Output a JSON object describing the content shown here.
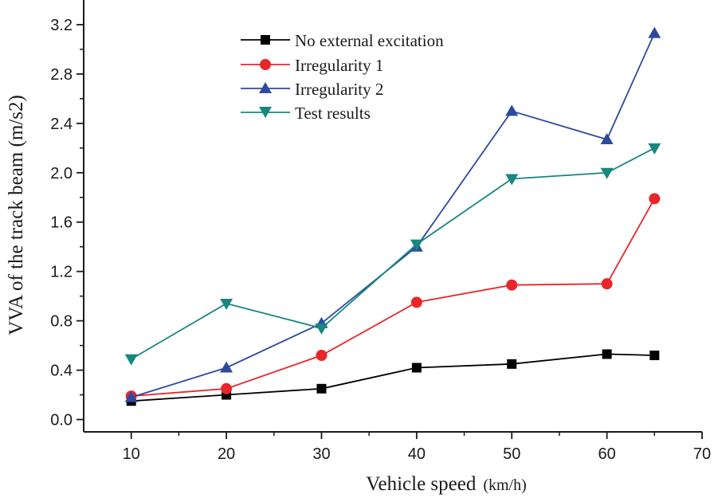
{
  "chart_data": {
    "type": "line",
    "title": "",
    "xlabel": "Vehicle speed",
    "xlabel_unit": "(km/h)",
    "ylabel": "VVA of the track beam (m/s2)",
    "xlim": [
      5,
      70
    ],
    "ylim": [
      -0.1,
      3.4
    ],
    "xticks": [
      10,
      20,
      30,
      40,
      50,
      60,
      70
    ],
    "yticks": [
      0.0,
      0.4,
      0.8,
      1.2,
      1.6,
      2.0,
      2.4,
      2.8,
      3.2
    ],
    "ytick_labels": [
      "0.0",
      "0.4",
      "0.8",
      "1.2",
      "1.6",
      "2.0",
      "2.4",
      "2.8",
      "3.2"
    ],
    "grid": false,
    "legend_position": "top-center",
    "x": [
      10,
      20,
      30,
      40,
      50,
      60,
      65
    ],
    "series": [
      {
        "name": "No external excitation",
        "marker": "square",
        "color": "#000000",
        "values": [
          0.15,
          0.2,
          0.25,
          0.42,
          0.45,
          0.53,
          0.52
        ]
      },
      {
        "name": "Irregularity 1",
        "marker": "circle",
        "color": "#e8262a",
        "values": [
          0.19,
          0.25,
          0.52,
          0.95,
          1.09,
          1.1,
          1.79
        ]
      },
      {
        "name": "Irregularity 2",
        "marker": "triangle-up",
        "color": "#2e4a9e",
        "values": [
          0.18,
          0.42,
          0.78,
          1.4,
          2.5,
          2.27,
          3.13
        ]
      },
      {
        "name": "Test results",
        "marker": "triangle-down",
        "color": "#17877f",
        "values": [
          0.49,
          0.94,
          0.74,
          1.42,
          1.95,
          2.0,
          2.2
        ]
      }
    ]
  }
}
